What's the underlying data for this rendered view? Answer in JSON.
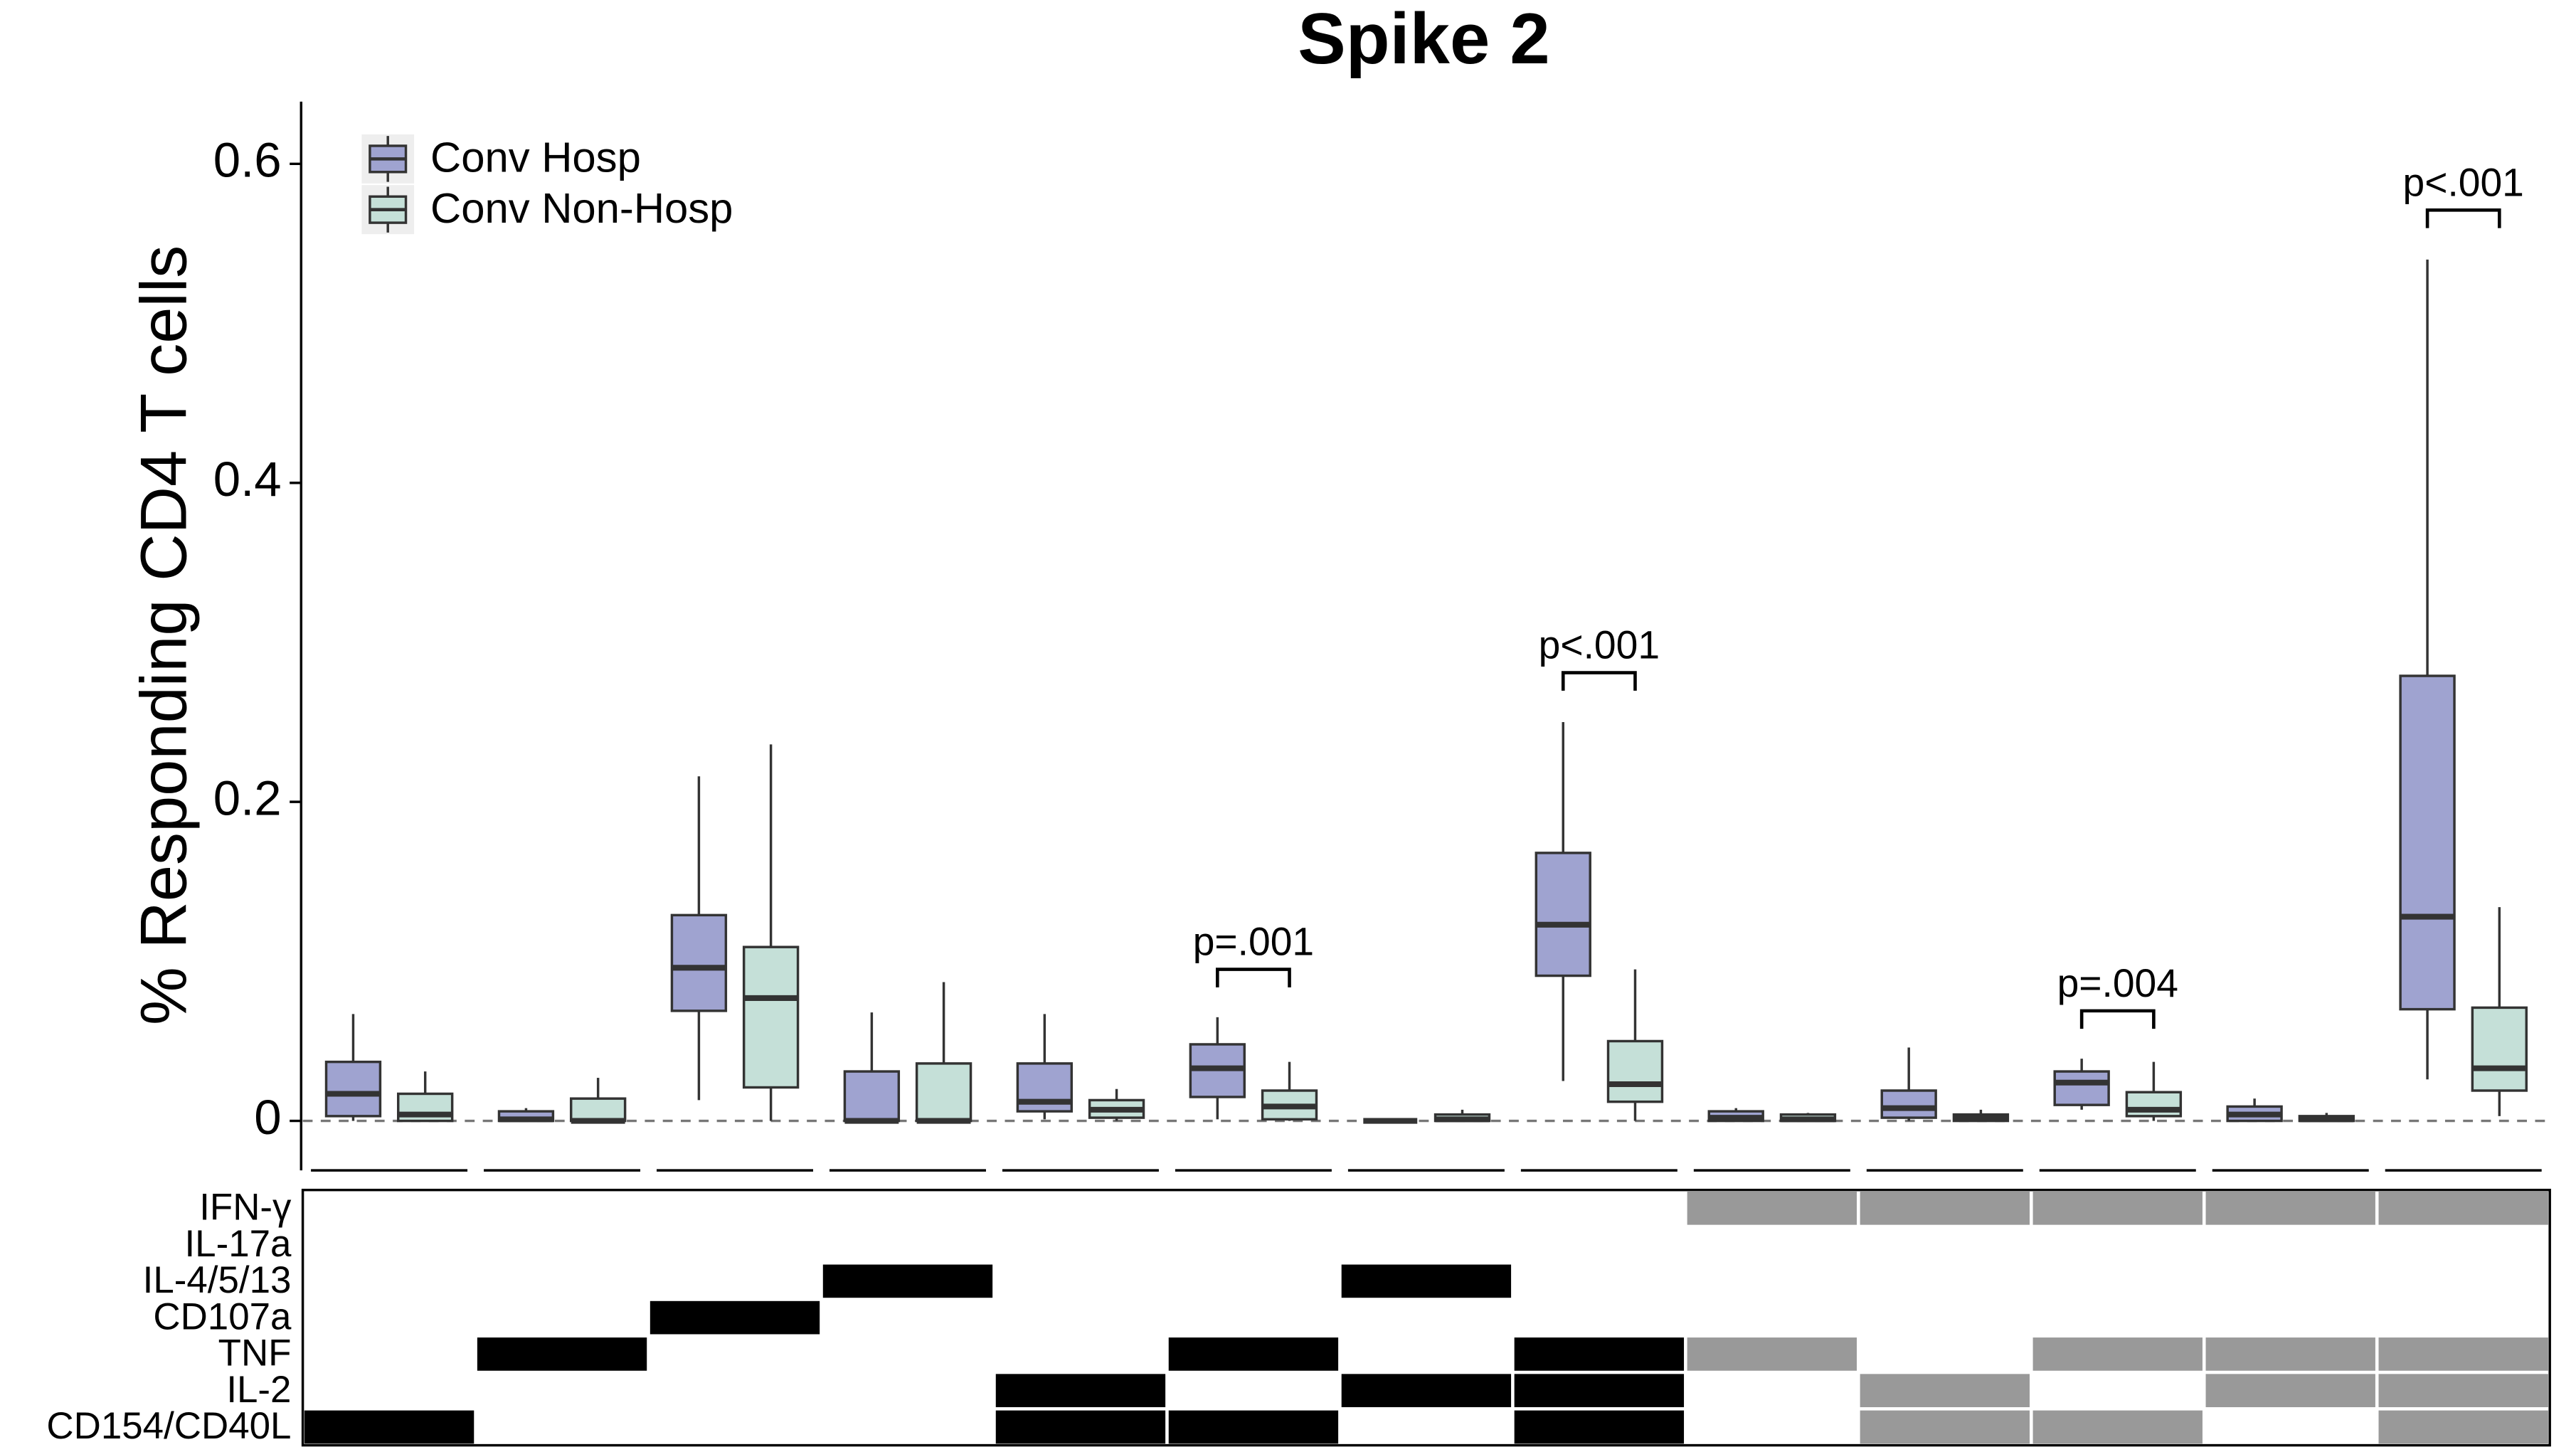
{
  "chart_data": {
    "type": "box",
    "title": "Spike 2",
    "ylabel": "% Responding CD4 T cells",
    "ylim": [
      -0.031,
      0.639
    ],
    "yticks": [
      0,
      0.2,
      0.4,
      0.6
    ],
    "hline": 0,
    "series": [
      {
        "name": "Conv Hosp",
        "color": "#9fa3d0",
        "boxes": [
          {
            "whislo": 0,
            "q1": 0.003,
            "med": 0.017,
            "q3": 0.037,
            "whishi": 0.067
          },
          {
            "whislo": 0,
            "q1": 0,
            "med": 0.001,
            "q3": 0.006,
            "whishi": 0.008
          },
          {
            "whislo": 0.013,
            "q1": 0.069,
            "med": 0.096,
            "q3": 0.129,
            "whishi": 0.216
          },
          {
            "whislo": 0,
            "q1": 0,
            "med": 0,
            "q3": 0.031,
            "whishi": 0.068
          },
          {
            "whislo": 0.001,
            "q1": 0.006,
            "med": 0.012,
            "q3": 0.036,
            "whishi": 0.067
          },
          {
            "whislo": 0.001,
            "q1": 0.015,
            "med": 0.033,
            "q3": 0.048,
            "whishi": 0.065
          },
          {
            "whislo": 0,
            "q1": 0,
            "med": 0,
            "q3": 0,
            "whishi": 0.001
          },
          {
            "whislo": 0.025,
            "q1": 0.091,
            "med": 0.123,
            "q3": 0.168,
            "whishi": 0.25
          },
          {
            "whislo": 0,
            "q1": 0,
            "med": 0.002,
            "q3": 0.006,
            "whishi": 0.008
          },
          {
            "whislo": 0,
            "q1": 0.002,
            "med": 0.008,
            "q3": 0.019,
            "whishi": 0.046
          },
          {
            "whislo": 0.007,
            "q1": 0.01,
            "med": 0.024,
            "q3": 0.031,
            "whishi": 0.039
          },
          {
            "whislo": 0,
            "q1": 0,
            "med": 0.004,
            "q3": 0.009,
            "whishi": 0.014
          },
          {
            "whislo": 0.026,
            "q1": 0.07,
            "med": 0.128,
            "q3": 0.279,
            "whishi": 0.54
          }
        ]
      },
      {
        "name": "Conv Non-Hosp",
        "color": "#c5e0d8",
        "boxes": [
          {
            "whislo": 0,
            "q1": 0,
            "med": 0.004,
            "q3": 0.017,
            "whishi": 0.031
          },
          {
            "whislo": 0,
            "q1": 0,
            "med": 0,
            "q3": 0.014,
            "whishi": 0.027
          },
          {
            "whislo": 0,
            "q1": 0.021,
            "med": 0.077,
            "q3": 0.109,
            "whishi": 0.236
          },
          {
            "whislo": 0,
            "q1": 0,
            "med": 0,
            "q3": 0.036,
            "whishi": 0.087
          },
          {
            "whislo": 0,
            "q1": 0.002,
            "med": 0.007,
            "q3": 0.013,
            "whishi": 0.02
          },
          {
            "whislo": 0,
            "q1": 0.001,
            "med": 0.009,
            "q3": 0.019,
            "whishi": 0.037
          },
          {
            "whislo": 0,
            "q1": 0,
            "med": 0.001,
            "q3": 0.004,
            "whishi": 0.007
          },
          {
            "whislo": 0,
            "q1": 0.012,
            "med": 0.023,
            "q3": 0.05,
            "whishi": 0.095
          },
          {
            "whislo": 0,
            "q1": 0,
            "med": 0.001,
            "q3": 0.004,
            "whishi": 0.005
          },
          {
            "whislo": 0,
            "q1": 0,
            "med": 0.002,
            "q3": 0.004,
            "whishi": 0.007
          },
          {
            "whislo": 0,
            "q1": 0.003,
            "med": 0.007,
            "q3": 0.018,
            "whishi": 0.037
          },
          {
            "whislo": 0,
            "q1": 0,
            "med": 0.001,
            "q3": 0.003,
            "whishi": 0.005
          },
          {
            "whislo": 0.003,
            "q1": 0.019,
            "med": 0.033,
            "q3": 0.071,
            "whishi": 0.134
          }
        ]
      }
    ],
    "annotations": [
      {
        "group": 5,
        "y": 0.095,
        "label": "p=.001"
      },
      {
        "group": 7,
        "y": 0.281,
        "label": "p<.001"
      },
      {
        "group": 10,
        "y": 0.069,
        "label": "p=.004"
      },
      {
        "group": 12,
        "y": 0.571,
        "label": "p<.001"
      }
    ],
    "matrix": [
      {
        "label": "IFN-γ",
        "cells": [
          null,
          null,
          null,
          null,
          null,
          null,
          null,
          null,
          "#999999",
          "#999999",
          "#999999",
          "#999999",
          "#999999"
        ]
      },
      {
        "label": "IL-17a",
        "cells": [
          null,
          null,
          null,
          null,
          null,
          null,
          null,
          null,
          null,
          null,
          null,
          null,
          null
        ]
      },
      {
        "label": "IL-4/5/13",
        "cells": [
          null,
          null,
          null,
          "#000000",
          null,
          null,
          "#000000",
          null,
          null,
          null,
          null,
          null,
          null
        ]
      },
      {
        "label": "CD107a",
        "cells": [
          null,
          null,
          "#000000",
          null,
          null,
          null,
          null,
          null,
          null,
          null,
          null,
          null,
          null
        ]
      },
      {
        "label": "TNF",
        "cells": [
          null,
          "#000000",
          null,
          null,
          null,
          "#000000",
          null,
          "#000000",
          "#999999",
          null,
          "#999999",
          "#999999",
          "#999999"
        ]
      },
      {
        "label": "IL-2",
        "cells": [
          null,
          null,
          null,
          null,
          "#000000",
          null,
          "#000000",
          "#000000",
          null,
          "#999999",
          null,
          "#999999",
          "#999999"
        ]
      },
      {
        "label": "CD154/CD40L",
        "cells": [
          "#000000",
          null,
          null,
          null,
          "#000000",
          "#000000",
          null,
          "#000000",
          null,
          "#999999",
          "#999999",
          null,
          "#999999"
        ]
      }
    ]
  }
}
